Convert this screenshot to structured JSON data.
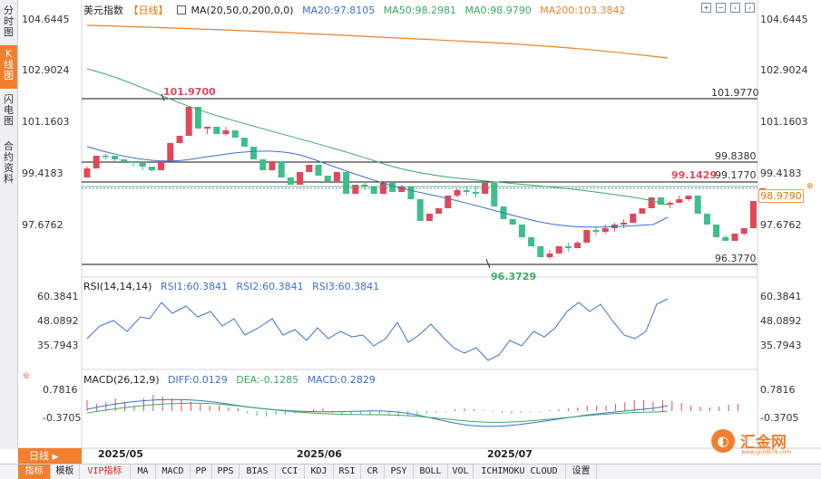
{
  "sidebar": {
    "tabs": [
      {
        "label": "分\n时\n图",
        "active": false
      },
      {
        "label": "K\n线\n图",
        "active": true
      },
      {
        "label": "闪\n电\n图",
        "active": false
      },
      {
        "label": "合\n约\n资\n料",
        "active": false
      }
    ]
  },
  "main_legend": {
    "symbol": "美元指数",
    "period": "【日线】",
    "ma_params": "MA(20,50,0,200,0,0)",
    "ma20": "MA20:97.8105",
    "ma50": "MA50:98.2981",
    "ma0": "MA0:98.9790",
    "ma200": "MA200:103.3842"
  },
  "main_yaxis": [
    "104.6445",
    "102.9024",
    "101.1603",
    "99.4183",
    "97.6762"
  ],
  "levels": {
    "l1": "101.9770",
    "l2": "99.8380",
    "l3": "99.1770",
    "l4": "96.3770"
  },
  "annotations": {
    "high": "101.9700",
    "low": "96.3729",
    "last_high": "99.1429"
  },
  "current_price": "98.9790",
  "rsi": {
    "title": "RSI(14,14,14)",
    "rsi1": "RSI1:60.3841",
    "rsi2": "RSI2:60.3841",
    "rsi3": "RSI3:60.3841",
    "yaxis": [
      "60.3841",
      "48.0892",
      "35.7943"
    ]
  },
  "macd": {
    "title": "MACD(26,12,9)",
    "diff": "DIFF:0.0129",
    "dea": "DEA:-0.1285",
    "macd": "MACD:0.2829",
    "yaxis": [
      "0.7816",
      "-0.3705"
    ]
  },
  "xaxis": [
    "2025/05",
    "2025/06",
    "2025/07"
  ],
  "period_button": "日线",
  "bottom_tabs": [
    "指标",
    "模板",
    "VIP指标",
    "MA",
    "MACD",
    "PP",
    "PPS",
    "BIAS",
    "CCI",
    "KDJ",
    "RSI",
    "CR",
    "PSY",
    "BOLL",
    "VOL",
    "ICHIMOKU CLOUD",
    "设置"
  ],
  "logo_text": "汇金网",
  "logo_sub": "www.gold678.com",
  "colors": {
    "up": "#e0485a",
    "down": "#3cbf8a",
    "ma20": "#3e6fd0",
    "ma50": "#3aaa66",
    "ma200": "#e8842c",
    "accent": "#f27e2f"
  }
}
